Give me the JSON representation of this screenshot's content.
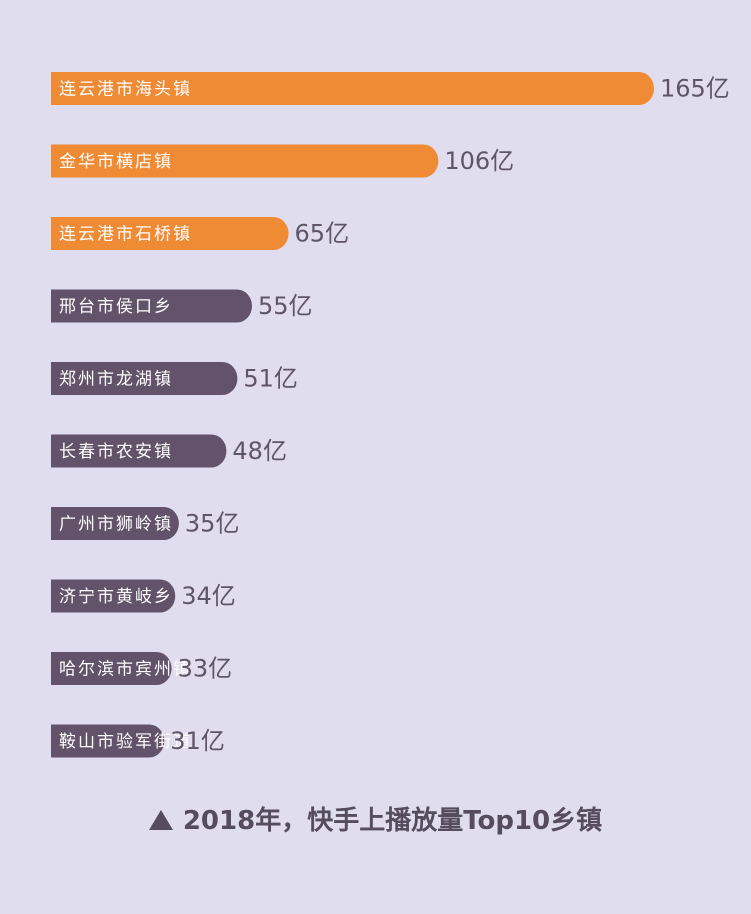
{
  "chart_data": {
    "type": "bar",
    "orientation": "horizontal",
    "categories": [
      "连云港市海头镇",
      "金华市横店镇",
      "连云港市石桥镇",
      "邢台市侯口乡",
      "郑州市龙湖镇",
      "长春市农安镇",
      "广州市狮岭镇",
      "济宁市黄岐乡",
      "哈尔滨市宾州镇",
      "鞍山市验军街道"
    ],
    "values": [
      165,
      106,
      65,
      55,
      51,
      48,
      35,
      34,
      33,
      31
    ],
    "value_labels": [
      "165亿",
      "106亿",
      "65亿",
      "55亿",
      "51亿",
      "48亿",
      "35亿",
      "34亿",
      "33亿",
      "31亿"
    ],
    "bar_colors": [
      "#ef8a35",
      "#ef8a35",
      "#ef8a35",
      "#62536a",
      "#62536a",
      "#62536a",
      "#62536a",
      "#62536a",
      "#62536a",
      "#62536a"
    ],
    "caption": "2018年，快手上播放量Top10乡镇",
    "grid": false,
    "legend": "none"
  },
  "colors": {
    "background": "#dfddee",
    "highlight_bar": "#ef8a35",
    "default_bar": "#62536a",
    "value_text": "#5e5566"
  },
  "icons": {
    "caption_marker": "triangle-up-icon"
  }
}
